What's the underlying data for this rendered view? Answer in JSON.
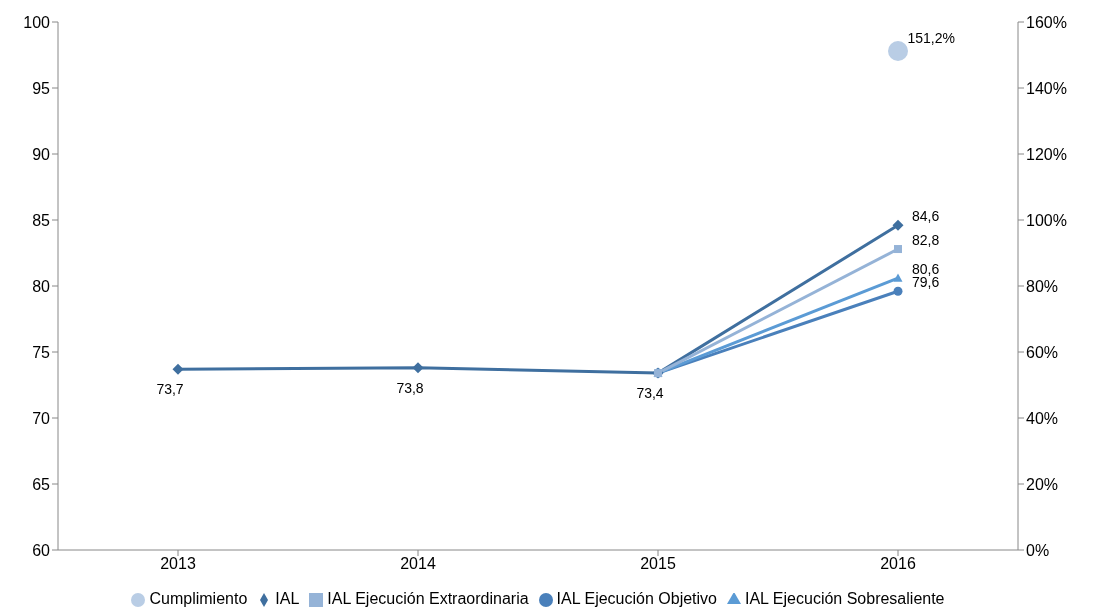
{
  "chart_data": {
    "type": "line",
    "categories": [
      "2013",
      "2014",
      "2015",
      "2016"
    ],
    "series": [
      {
        "name": "IAL",
        "color": "#3f6f9f",
        "marker": "diamond",
        "values": [
          73.7,
          73.8,
          73.4,
          84.6
        ],
        "value_labels": [
          "73,7",
          "73,8",
          "73,4",
          "84,6"
        ]
      },
      {
        "name": "IAL Ejecución Objetivo",
        "color": "#4a80bb",
        "marker": "circle",
        "values": [
          null,
          null,
          73.4,
          79.6
        ],
        "value_labels": [
          null,
          null,
          null,
          "79,6"
        ]
      },
      {
        "name": "IAL Ejecución Sobresaliente",
        "color": "#5b9bd5",
        "marker": "triangle",
        "values": [
          null,
          null,
          73.4,
          80.6
        ],
        "value_labels": [
          null,
          null,
          null,
          "80,6"
        ]
      },
      {
        "name": "IAL Ejecución Extraordinaria",
        "color": "#95b3d7",
        "marker": "square",
        "values": [
          null,
          null,
          73.4,
          82.8
        ],
        "value_labels": [
          null,
          null,
          null,
          "82,8"
        ]
      },
      {
        "name": "Cumplimiento",
        "type": "scatter",
        "axis": "y2",
        "color": "#b9cde5",
        "marker": "circle",
        "values": [
          null,
          null,
          null,
          151.2
        ],
        "value_labels": [
          null,
          null,
          null,
          "151,2%"
        ]
      }
    ],
    "ylim": [
      60,
      100
    ],
    "yticks": [
      60,
      65,
      70,
      75,
      80,
      85,
      90,
      95,
      100
    ],
    "y2lim": [
      0,
      160
    ],
    "y2ticks": [
      {
        "value": 0,
        "label": "0%"
      },
      {
        "value": 20,
        "label": "20%"
      },
      {
        "value": 40,
        "label": "40%"
      },
      {
        "value": 60,
        "label": "60%"
      },
      {
        "value": 80,
        "label": "80%"
      },
      {
        "value": 100,
        "label": "100%"
      },
      {
        "value": 120,
        "label": "120%"
      },
      {
        "value": 140,
        "label": "140%"
      },
      {
        "value": 160,
        "label": "160%"
      }
    ],
    "grid": false,
    "legend": "bottom",
    "line_style": "solid"
  }
}
